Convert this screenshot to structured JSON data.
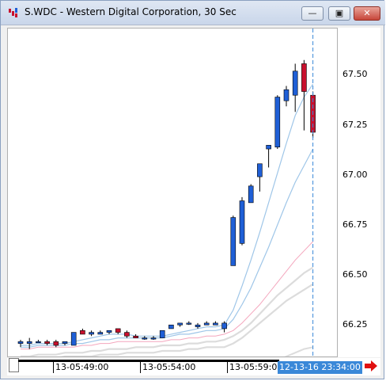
{
  "window": {
    "title": "S.WDC - Western Digital Corporation, 30 Sec",
    "minimize_glyph": "—",
    "restore_glyph": "▣",
    "close_glyph": "✕"
  },
  "colors": {
    "up_candle": "#1f5fd6",
    "down_candle": "#c8102e",
    "fast_ma": "#9fc6e8",
    "mid_ma": "#f4a6bd",
    "slow_ma": "#dcdcdc",
    "current_time_bg": "#3a88d8"
  },
  "price_axis": {
    "labels": [
      "67.50",
      "67.25",
      "67.00",
      "66.75",
      "66.50",
      "66.25"
    ]
  },
  "time_axis": {
    "labels": [
      "13-05:49:00",
      "13-05:54:00",
      "13-05:59:00"
    ],
    "current": "12-13-16 23:34:00"
  },
  "chart_data": {
    "type": "candlestick",
    "title": "S.WDC - Western Digital Corporation, 30 Sec",
    "ylim": [
      66.1,
      67.87
    ],
    "y_ticks": [
      66.25,
      66.5,
      66.75,
      67.0,
      67.25,
      67.5
    ],
    "x_tick_labels": [
      "13-05:49:00",
      "13-05:54:00",
      "13-05:59:00"
    ],
    "candles": [
      {
        "o": 66.17,
        "h": 66.19,
        "l": 66.15,
        "c": 66.18
      },
      {
        "o": 66.17,
        "h": 66.2,
        "l": 66.14,
        "c": 66.18
      },
      {
        "o": 66.18,
        "h": 66.19,
        "l": 66.18,
        "c": 66.18
      },
      {
        "o": 66.18,
        "h": 66.19,
        "l": 66.16,
        "c": 66.17
      },
      {
        "o": 66.18,
        "h": 66.19,
        "l": 66.15,
        "c": 66.16
      },
      {
        "o": 66.17,
        "h": 66.18,
        "l": 66.16,
        "c": 66.18
      },
      {
        "o": 66.16,
        "h": 66.23,
        "l": 66.16,
        "c": 66.23
      },
      {
        "o": 66.24,
        "h": 66.25,
        "l": 66.22,
        "c": 66.22
      },
      {
        "o": 66.22,
        "h": 66.24,
        "l": 66.21,
        "c": 66.23
      },
      {
        "o": 66.22,
        "h": 66.24,
        "l": 66.22,
        "c": 66.23
      },
      {
        "o": 66.23,
        "h": 66.24,
        "l": 66.22,
        "c": 66.24
      },
      {
        "o": 66.25,
        "h": 66.25,
        "l": 66.22,
        "c": 66.23
      },
      {
        "o": 66.23,
        "h": 66.24,
        "l": 66.2,
        "c": 66.21
      },
      {
        "o": 66.21,
        "h": 66.22,
        "l": 66.2,
        "c": 66.2
      },
      {
        "o": 66.2,
        "h": 66.21,
        "l": 66.19,
        "c": 66.2
      },
      {
        "o": 66.2,
        "h": 66.21,
        "l": 66.19,
        "c": 66.2
      },
      {
        "o": 66.2,
        "h": 66.24,
        "l": 66.2,
        "c": 66.24
      },
      {
        "o": 66.25,
        "h": 66.27,
        "l": 66.25,
        "c": 66.27
      },
      {
        "o": 66.27,
        "h": 66.28,
        "l": 66.26,
        "c": 66.28
      },
      {
        "o": 66.28,
        "h": 66.29,
        "l": 66.27,
        "c": 66.28
      },
      {
        "o": 66.26,
        "h": 66.28,
        "l": 66.25,
        "c": 66.27
      },
      {
        "o": 66.27,
        "h": 66.29,
        "l": 66.27,
        "c": 66.28
      },
      {
        "o": 66.27,
        "h": 66.29,
        "l": 66.27,
        "c": 66.28
      },
      {
        "o": 66.25,
        "h": 66.29,
        "l": 66.23,
        "c": 66.28
      },
      {
        "o": 66.59,
        "h": 66.86,
        "l": 66.59,
        "c": 66.85
      },
      {
        "o": 66.71,
        "h": 66.96,
        "l": 66.7,
        "c": 66.94
      },
      {
        "o": 66.93,
        "h": 67.03,
        "l": 66.93,
        "c": 67.02
      },
      {
        "o": 67.07,
        "h": 67.14,
        "l": 66.99,
        "c": 67.14
      },
      {
        "o": 67.22,
        "h": 67.24,
        "l": 67.12,
        "c": 67.24
      },
      {
        "o": 67.23,
        "h": 67.51,
        "l": 67.22,
        "c": 67.5
      },
      {
        "o": 67.48,
        "h": 67.56,
        "l": 67.45,
        "c": 67.54
      },
      {
        "o": 67.51,
        "h": 67.68,
        "l": 67.42,
        "c": 67.64
      },
      {
        "o": 67.68,
        "h": 67.7,
        "l": 67.32,
        "c": 67.53
      },
      {
        "o": 67.51,
        "h": 67.53,
        "l": 67.28,
        "c": 67.31
      }
    ],
    "series": [
      {
        "values": [
          66.16,
          66.16,
          66.17,
          66.17,
          66.17,
          66.17,
          66.18,
          66.19,
          66.2,
          66.21,
          66.22,
          66.22,
          66.22,
          66.21,
          66.21,
          66.21,
          66.21,
          66.22,
          66.23,
          66.24,
          66.25,
          66.26,
          66.26,
          66.27,
          66.35,
          66.48,
          66.62,
          66.77,
          66.93,
          67.09,
          67.25,
          67.4,
          67.5,
          67.57
        ]
      },
      {
        "values": [
          66.15,
          66.15,
          66.16,
          66.16,
          66.16,
          66.16,
          66.17,
          66.17,
          66.18,
          66.19,
          66.19,
          66.2,
          66.2,
          66.2,
          66.2,
          66.2,
          66.2,
          66.21,
          66.22,
          66.22,
          66.23,
          66.24,
          66.24,
          66.25,
          66.3,
          66.38,
          66.47,
          66.58,
          66.69,
          66.81,
          66.93,
          67.04,
          67.13,
          67.22
        ]
      },
      {
        "values": [
          66.14,
          66.14,
          66.15,
          66.15,
          66.15,
          66.15,
          66.15,
          66.16,
          66.16,
          66.17,
          66.17,
          66.18,
          66.18,
          66.18,
          66.18,
          66.18,
          66.18,
          66.19,
          66.19,
          66.2,
          66.2,
          66.21,
          66.21,
          66.22,
          66.24,
          66.28,
          66.33,
          66.38,
          66.44,
          66.5,
          66.56,
          66.62,
          66.67,
          66.72
        ]
      },
      {
        "values": [
          66.1,
          66.1,
          66.11,
          66.11,
          66.11,
          66.12,
          66.12,
          66.12,
          66.13,
          66.13,
          66.14,
          66.14,
          66.14,
          66.15,
          66.15,
          66.15,
          66.16,
          66.16,
          66.16,
          66.17,
          66.17,
          66.18,
          66.18,
          66.19,
          66.21,
          66.24,
          66.28,
          66.33,
          66.38,
          66.43,
          66.47,
          66.51,
          66.55,
          66.58
        ]
      },
      {
        "values": [
          66.08,
          66.08,
          66.09,
          66.09,
          66.09,
          66.1,
          66.1,
          66.1,
          66.1,
          66.11,
          66.11,
          66.11,
          66.12,
          66.12,
          66.12,
          66.12,
          66.13,
          66.13,
          66.13,
          66.14,
          66.14,
          66.15,
          66.15,
          66.15,
          66.17,
          66.2,
          66.24,
          66.28,
          66.32,
          66.36,
          66.4,
          66.43,
          66.46,
          66.49
        ]
      },
      {
        "values": [
          null,
          null,
          null,
          null,
          null,
          null,
          null,
          null,
          null,
          null,
          null,
          null,
          null,
          null,
          null,
          null,
          null,
          null,
          null,
          null,
          null,
          null,
          null,
          null,
          null,
          null,
          null,
          null,
          null,
          66.08,
          66.1,
          66.12,
          66.14,
          66.15
        ]
      }
    ]
  }
}
